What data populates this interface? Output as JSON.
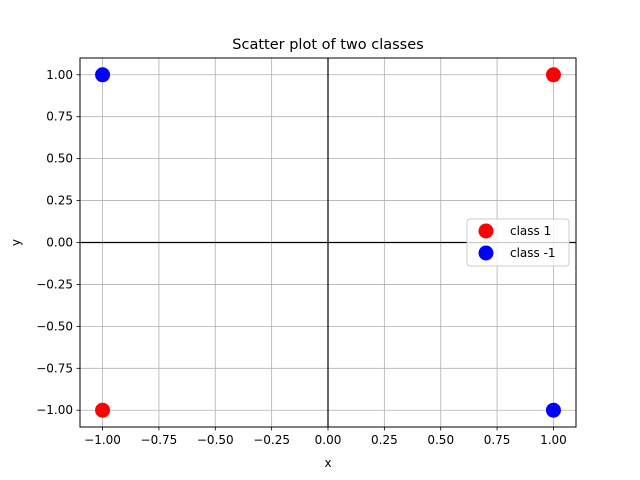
{
  "chart_data": {
    "type": "scatter",
    "title": "Scatter plot of two classes",
    "xlabel": "x",
    "ylabel": "y",
    "xlim": [
      -1.1,
      1.1
    ],
    "ylim": [
      -1.1,
      1.1
    ],
    "xticks": [
      -1.0,
      -0.75,
      -0.5,
      -0.25,
      0.0,
      0.25,
      0.5,
      0.75,
      1.0
    ],
    "yticks": [
      -1.0,
      -0.75,
      -0.5,
      -0.25,
      0.0,
      0.25,
      0.5,
      0.75,
      1.0
    ],
    "xtick_labels": [
      "−1.00",
      "−0.75",
      "−0.50",
      "−0.25",
      "0.00",
      "0.25",
      "0.50",
      "0.75",
      "1.00"
    ],
    "ytick_labels": [
      "−1.00",
      "−0.75",
      "−0.50",
      "−0.25",
      "0.00",
      "0.25",
      "0.50",
      "0.75",
      "1.00"
    ],
    "grid": true,
    "legend_position": "center-right",
    "series": [
      {
        "name": "class 1",
        "color": "#ff0000",
        "points": [
          [
            1,
            1
          ],
          [
            -1,
            -1
          ]
        ]
      },
      {
        "name": "class -1",
        "color": "#0000ff",
        "points": [
          [
            -1,
            1
          ],
          [
            1,
            -1
          ]
        ]
      }
    ]
  }
}
